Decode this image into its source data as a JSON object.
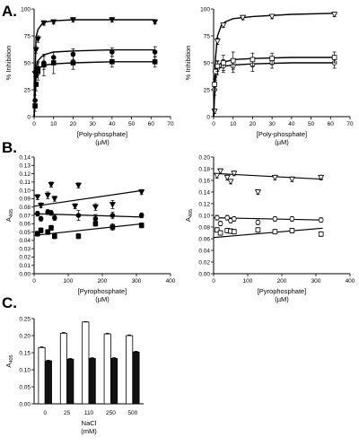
{
  "figure": {
    "panel_labels": [
      "A.",
      "B.",
      "C."
    ]
  },
  "chart_data": [
    {
      "id": "A-left",
      "type": "scatter",
      "xlabel": "[Poly-phosphate]",
      "xunit": "(µM)",
      "ylabel": "% Inhibition",
      "xlim": [
        0,
        70
      ],
      "ylim": [
        0,
        100
      ],
      "xticks": [
        0,
        10,
        20,
        30,
        40,
        50,
        60,
        70
      ],
      "yticks": [
        0,
        25,
        50,
        75,
        100
      ],
      "grid": false,
      "series": [
        {
          "marker": "triangle-down",
          "x": [
            0.5,
            1,
            2,
            5,
            10,
            20,
            40,
            62
          ],
          "y": [
            40,
            62,
            72,
            87,
            88,
            90,
            90,
            88
          ],
          "err": [
            3,
            3,
            3,
            2,
            2,
            2,
            2,
            2
          ],
          "curve": [
            0,
            1,
            2,
            4,
            6,
            10,
            20,
            40,
            62
          ],
          "curve_y": [
            0,
            74,
            81,
            86,
            88,
            89,
            90,
            90,
            90
          ]
        },
        {
          "marker": "circle",
          "x": [
            0.5,
            1,
            2,
            5,
            10,
            20,
            40,
            62
          ],
          "y": [
            15,
            38,
            45,
            50,
            55,
            58,
            60,
            60
          ],
          "err": [
            5,
            7,
            6,
            6,
            5,
            5,
            4,
            5
          ],
          "curve": [
            0,
            1,
            2,
            4,
            6,
            10,
            20,
            40,
            62
          ],
          "curve_y": [
            0,
            46,
            52,
            56,
            58,
            60,
            61,
            62,
            62
          ]
        },
        {
          "marker": "square",
          "x": [
            0.5,
            1,
            2,
            5,
            10,
            20,
            40,
            62
          ],
          "y": [
            10,
            30,
            42,
            48,
            50,
            50,
            51,
            51
          ],
          "err": [
            5,
            6,
            8,
            10,
            10,
            6,
            5,
            5
          ],
          "curve": [
            0,
            1,
            2,
            4,
            6,
            10,
            20,
            40,
            62
          ],
          "curve_y": [
            0,
            38,
            44,
            47,
            48,
            49,
            50,
            51,
            51
          ]
        }
      ]
    },
    {
      "id": "A-right",
      "type": "scatter",
      "xlabel": "[Poly-phosphate]",
      "xunit": "(µM)",
      "ylabel": "% Inhibition",
      "xlim": [
        0,
        70
      ],
      "ylim": [
        0,
        100
      ],
      "xticks": [
        0,
        10,
        20,
        30,
        40,
        50,
        60,
        70
      ],
      "yticks": [
        0,
        25,
        50,
        75,
        100
      ],
      "grid": false,
      "series": [
        {
          "marker": "triangle-down-open",
          "x": [
            0.5,
            1,
            2,
            5,
            15,
            30,
            62
          ],
          "y": [
            5,
            40,
            70,
            85,
            92,
            93,
            95
          ],
          "err": [
            2,
            3,
            3,
            2,
            2,
            2,
            2
          ],
          "curve": [
            0,
            1,
            2,
            4,
            6,
            10,
            20,
            40,
            62
          ],
          "curve_y": [
            0,
            55,
            75,
            85,
            88,
            91,
            93,
            95,
            96
          ]
        },
        {
          "marker": "circle-open",
          "x": [
            0.5,
            1,
            2,
            5,
            10,
            20,
            30,
            62
          ],
          "y": [
            25,
            40,
            45,
            47,
            47,
            48,
            50,
            50
          ],
          "err": [
            5,
            6,
            6,
            6,
            6,
            6,
            5,
            5
          ],
          "curve": [
            0,
            1,
            2,
            4,
            6,
            10,
            20,
            40,
            62
          ],
          "curve_y": [
            0,
            40,
            44,
            46,
            47,
            48,
            49,
            50,
            50
          ]
        },
        {
          "marker": "square-open",
          "x": [
            0.5,
            1,
            2,
            5,
            10,
            20,
            30,
            62
          ],
          "y": [
            30,
            42,
            47,
            50,
            52,
            53,
            54,
            55
          ],
          "err": [
            5,
            6,
            5,
            7,
            8,
            6,
            5,
            5
          ],
          "curve": [
            0,
            1,
            2,
            4,
            6,
            10,
            20,
            40,
            62
          ],
          "curve_y": [
            0,
            42,
            47,
            50,
            51,
            53,
            54,
            55,
            55
          ]
        }
      ]
    },
    {
      "id": "B-left",
      "type": "scatter",
      "xlabel": "[Pyrophosphate]",
      "xunit": "(µM)",
      "ylabel": "A405",
      "xlim": [
        0,
        400
      ],
      "ylim": [
        0.0,
        0.14
      ],
      "xticks": [
        0,
        100,
        200,
        300,
        400
      ],
      "yticks": [
        0.0,
        0.01,
        0.02,
        0.03,
        0.04,
        0.05,
        0.06,
        0.07,
        0.08,
        0.09,
        0.1,
        0.11,
        0.12,
        0.13,
        0.14
      ],
      "grid": false,
      "series": [
        {
          "marker": "triangle-down",
          "x": [
            10,
            20,
            40,
            50,
            60,
            120,
            130,
            180,
            230,
            315
          ],
          "y": [
            0.092,
            0.082,
            0.094,
            0.107,
            0.09,
            0.081,
            0.106,
            0.08,
            0.083,
            0.098
          ],
          "err": [
            0.003,
            0.003,
            0.004,
            0.003,
            0.003,
            0.003,
            0.003,
            0.004,
            0.005,
            0.003
          ],
          "line": [
            0,
            320
          ],
          "line_y": [
            0.081,
            0.1
          ]
        },
        {
          "marker": "circle",
          "x": [
            10,
            20,
            40,
            50,
            60,
            130,
            180,
            230,
            315
          ],
          "y": [
            0.072,
            0.066,
            0.074,
            0.073,
            0.067,
            0.07,
            0.066,
            0.07,
            0.07
          ],
          "err": [
            0.003,
            0.003,
            0.003,
            0.003,
            0.003,
            0.006,
            0.005,
            0.004,
            0.003
          ],
          "line": [
            0,
            320
          ],
          "line_y": [
            0.072,
            0.068
          ]
        },
        {
          "marker": "square",
          "x": [
            10,
            20,
            40,
            50,
            60,
            130,
            180,
            230,
            315
          ],
          "y": [
            0.048,
            0.052,
            0.05,
            0.055,
            0.045,
            0.045,
            0.06,
            0.056,
            0.058
          ],
          "err": [
            0.003,
            0.003,
            0.003,
            0.003,
            0.003,
            0.003,
            0.003,
            0.004,
            0.003
          ],
          "line": [
            0,
            320
          ],
          "line_y": [
            0.046,
            0.06
          ]
        }
      ]
    },
    {
      "id": "B-right",
      "type": "scatter",
      "xlabel": "[Pyrophosphate]",
      "xunit": "(µM)",
      "ylabel": "A405",
      "xlim": [
        0,
        400
      ],
      "ylim": [
        0.0,
        0.2
      ],
      "xticks": [
        0,
        100,
        200,
        300,
        400
      ],
      "yticks": [
        0.0,
        0.02,
        0.04,
        0.06,
        0.08,
        0.1,
        0.12,
        0.14,
        0.16,
        0.18,
        0.2
      ],
      "grid": false,
      "series": [
        {
          "marker": "triangle-down-open",
          "x": [
            10,
            20,
            40,
            50,
            60,
            130,
            180,
            230,
            315
          ],
          "y": [
            0.168,
            0.176,
            0.165,
            0.158,
            0.172,
            0.14,
            0.165,
            0.162,
            0.165
          ],
          "err": [
            0.004,
            0.004,
            0.004,
            0.004,
            0.004,
            0.004,
            0.004,
            0.004,
            0.004
          ],
          "line": [
            0,
            320
          ],
          "line_y": [
            0.172,
            0.162
          ]
        },
        {
          "marker": "circle-open",
          "x": [
            10,
            20,
            40,
            50,
            60,
            130,
            180,
            230,
            315
          ],
          "y": [
            0.096,
            0.086,
            0.096,
            0.091,
            0.094,
            0.088,
            0.094,
            0.094,
            0.092
          ],
          "err": [
            0.004,
            0.004,
            0.004,
            0.004,
            0.004,
            0.004,
            0.004,
            0.004,
            0.004
          ],
          "line": [
            0,
            320
          ],
          "line_y": [
            0.096,
            0.092
          ]
        },
        {
          "marker": "square-open",
          "x": [
            10,
            20,
            40,
            50,
            60,
            130,
            180,
            230,
            315
          ],
          "y": [
            0.075,
            0.07,
            0.074,
            0.073,
            0.072,
            0.075,
            0.072,
            0.074,
            0.068
          ],
          "err": [
            0.004,
            0.004,
            0.004,
            0.004,
            0.004,
            0.004,
            0.004,
            0.004,
            0.004
          ],
          "line": [
            0,
            320
          ],
          "line_y": [
            0.062,
            0.078
          ]
        }
      ]
    },
    {
      "id": "C",
      "type": "bar",
      "xlabel": "NaCl",
      "xunit": "(mM)",
      "ylabel": "A405",
      "categories": [
        "0",
        "25",
        "110",
        "250",
        "500"
      ],
      "ylim": [
        0.0,
        0.25
      ],
      "yticks": [
        0.0,
        0.05,
        0.1,
        0.15,
        0.2,
        0.25
      ],
      "grid": false,
      "series": [
        {
          "fill": "#ffffff",
          "values": [
            0.165,
            0.207,
            0.24,
            0.205,
            0.2
          ],
          "err": [
            0.002,
            0.002,
            0.001,
            0.002,
            0.002
          ]
        },
        {
          "fill": "#111111",
          "values": [
            0.126,
            0.131,
            0.133,
            0.133,
            0.152
          ],
          "err": [
            0.002,
            0.002,
            0.002,
            0.002,
            0.002
          ]
        }
      ]
    }
  ]
}
